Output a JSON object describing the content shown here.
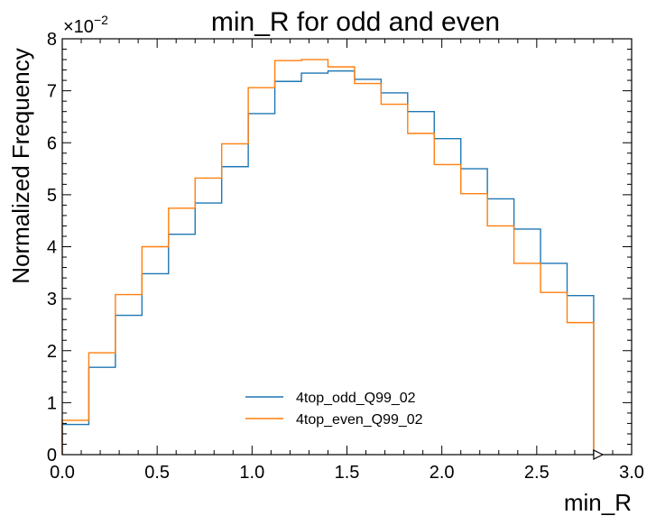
{
  "chart_data": {
    "type": "line",
    "title": "min_R for odd and even",
    "xlabel": "min_R",
    "ylabel": "Normalized Frequency",
    "y_multiplier_base": "×10",
    "y_multiplier_exp": "−2",
    "xlim": [
      0.0,
      3.0
    ],
    "ylim": [
      0,
      8
    ],
    "x_ticks": [
      0.0,
      0.5,
      1.0,
      1.5,
      2.0,
      2.5,
      3.0
    ],
    "x_tick_labels": [
      "0.0",
      "0.5",
      "1.0",
      "1.5",
      "2.0",
      "2.5",
      "3.0"
    ],
    "y_ticks": [
      0,
      1,
      2,
      3,
      4,
      5,
      6,
      7,
      8
    ],
    "y_tick_labels": [
      "0",
      "1",
      "2",
      "3",
      "4",
      "5",
      "6",
      "7",
      "8"
    ],
    "bin_edges": [
      0.0,
      0.14,
      0.28,
      0.42,
      0.56,
      0.7,
      0.84,
      0.98,
      1.12,
      1.26,
      1.4,
      1.54,
      1.68,
      1.82,
      1.96,
      2.1,
      2.24,
      2.38,
      2.52,
      2.66,
      2.8
    ],
    "legend_position": "lower-center",
    "series": [
      {
        "name": "4top_odd_Q99_02",
        "color": "#1f77b4",
        "values": [
          0.58,
          1.68,
          2.68,
          3.48,
          4.24,
          4.84,
          5.54,
          6.56,
          7.18,
          7.34,
          7.38,
          7.22,
          6.96,
          6.6,
          6.08,
          5.5,
          4.92,
          4.34,
          3.68,
          3.06
        ]
      },
      {
        "name": "4top_even_Q99_02",
        "color": "#ff7f0e",
        "values": [
          0.66,
          1.96,
          3.08,
          4.0,
          4.74,
          5.32,
          5.98,
          7.06,
          7.58,
          7.6,
          7.46,
          7.14,
          6.74,
          6.18,
          5.58,
          5.02,
          4.4,
          3.68,
          3.12,
          2.54
        ]
      }
    ]
  }
}
